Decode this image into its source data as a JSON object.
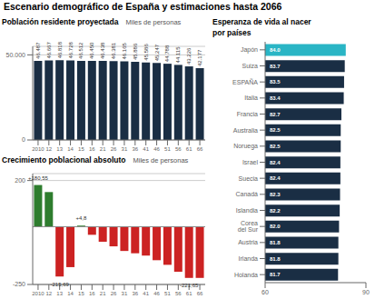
{
  "title": "Escenario demográfico de España y estimaciones hasta 2066",
  "chart_data": [
    {
      "type": "bar",
      "title": "Población residente proyectada",
      "subtitle": "Miles de personas",
      "categories": [
        "2010",
        "12",
        "13",
        "14",
        "15",
        "16",
        "21",
        "26",
        "31",
        "36",
        "41",
        "46",
        "51",
        "56",
        "61",
        "66"
      ],
      "values": [
        46487,
        46667,
        46818,
        46728,
        46512,
        46450,
        46438,
        46381,
        46165,
        45886,
        45586,
        45247,
        44788,
        44115,
        43226,
        42177
      ],
      "value_labels": [
        "46.487",
        "46.667",
        "46.818",
        "46.728",
        "46.512",
        "46.450",
        "46.438",
        "46.381",
        "46.165",
        "45.886",
        "45.586",
        "45.247",
        "44.788",
        "44.115",
        "43.226",
        "42.177"
      ],
      "data_labels": true,
      "color": "#1a2e44",
      "ylim": [
        0,
        55000
      ],
      "yticks": [
        0,
        {
          "value": 50000,
          "label": "50.000"
        }
      ],
      "grid": true
    },
    {
      "type": "bar",
      "title": "Crecimiento poblacional absoluto",
      "subtitle": "Miles de personas",
      "categories": [
        "2010",
        "12",
        "13",
        "14",
        "15",
        "16",
        "21",
        "26",
        "31",
        "36",
        "41",
        "46",
        "51",
        "56",
        "61",
        "66"
      ],
      "values": [
        180.55,
        150.0,
        -215.69,
        -175.0,
        4.8,
        -35.0,
        -65.0,
        -85.0,
        -105.0,
        -115.0,
        -125.0,
        -145.0,
        -165.0,
        -195.0,
        -221.65,
        -221.65
      ],
      "colors": [
        "#2e7d2e",
        "#2e7d2e",
        "#cc2222",
        "#cc2222",
        "#2e7d2e",
        "#cc2222",
        "#cc2222",
        "#cc2222",
        "#cc2222",
        "#cc2222",
        "#cc2222",
        "#cc2222",
        "#cc2222",
        "#cc2222",
        "#cc2222",
        "#cc2222"
      ],
      "ylim": [
        -250,
        230
      ],
      "yticks": [
        200,
        -250
      ],
      "grid": true,
      "annotations": [
        {
          "x": "2010",
          "y": 180.55,
          "text": "+180,55"
        },
        {
          "x": "15",
          "y": 4.8,
          "text": "+4,8"
        },
        {
          "x": "13",
          "y": -215.69,
          "text": "-215,69"
        },
        {
          "x": "61",
          "y": -221.65,
          "text": "-221,65"
        }
      ]
    },
    {
      "type": "bar",
      "orientation": "horizontal",
      "title": "Esperanza de vida al nacer",
      "subtitle": "por países",
      "categories": [
        "Japón",
        "Suiza",
        "ESPAÑA",
        "Italia",
        "Francia",
        "Australia",
        "Noruega",
        "Israel",
        "Suecia",
        "Canadá",
        "Islandia",
        "Corea del Sur",
        "Austria",
        "Irlanda",
        "Holanda"
      ],
      "values": [
        84.0,
        83.7,
        83.5,
        83.4,
        82.7,
        82.5,
        82.5,
        82.4,
        82.4,
        82.3,
        82.2,
        82.0,
        81.8,
        81.8,
        81.7
      ],
      "value_labels": [
        "84.0",
        "83.7",
        "83.5",
        "83.4",
        "82.7",
        "82.5",
        "82.5",
        "82.4",
        "82.4",
        "82.3",
        "82.2",
        "82.0",
        "81.8",
        "81.8",
        "81.7"
      ],
      "data_labels": true,
      "colors": [
        "#2ab5c5",
        "#1a2e44",
        "#1a2e44",
        "#1a2e44",
        "#1a2e44",
        "#1a2e44",
        "#1a2e44",
        "#1a2e44",
        "#1a2e44",
        "#1a2e44",
        "#1a2e44",
        "#1a2e44",
        "#1a2e44",
        "#1a2e44",
        "#1a2e44"
      ],
      "xlim": [
        60,
        90
      ],
      "xticks": [
        60,
        90
      ],
      "grid": false
    }
  ]
}
